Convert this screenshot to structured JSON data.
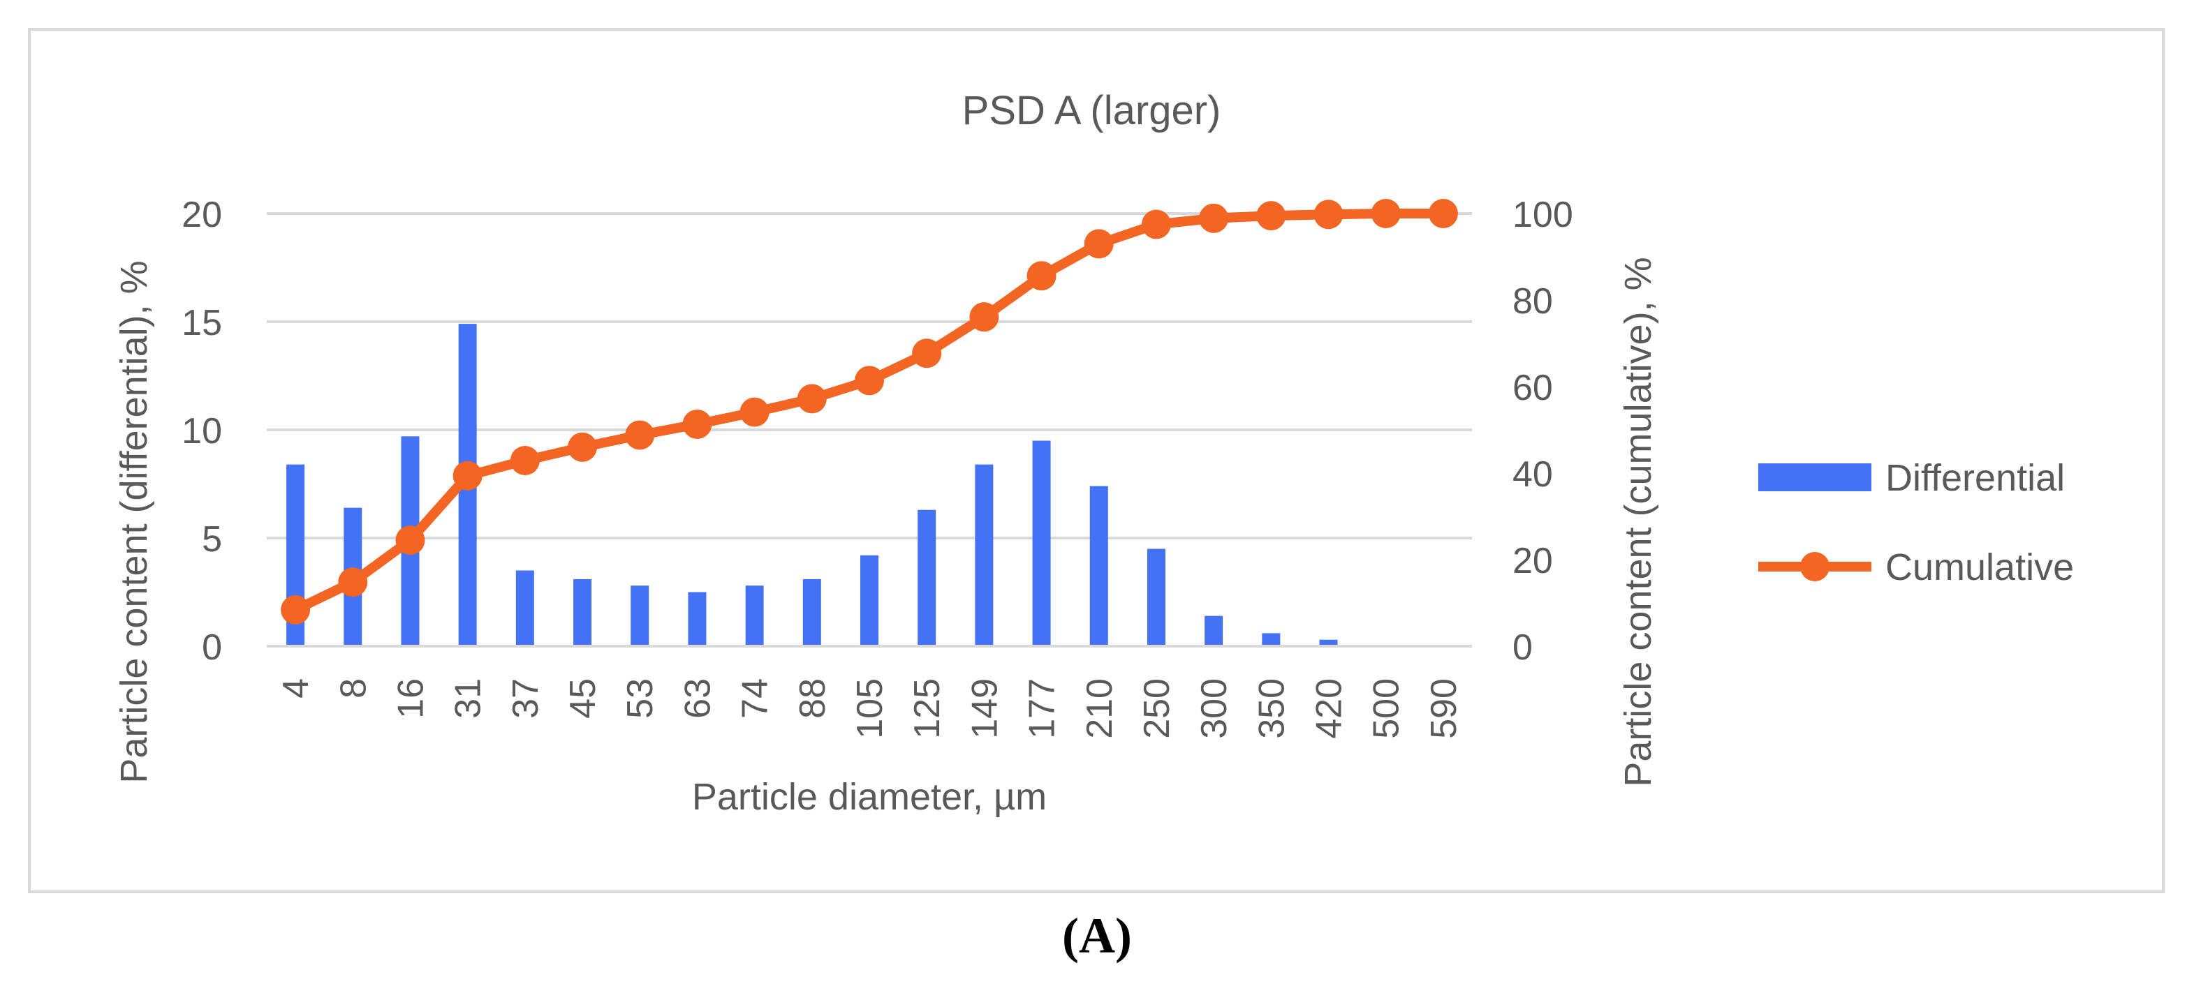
{
  "caption": "(A)",
  "chart_data": {
    "type": "bar+line",
    "title": "PSD A (larger)",
    "xlabel": "Particle diameter, µm",
    "ylabel_left": "Particle content (differential), %",
    "ylabel_right": "Particle content (cumulative), %",
    "ylim_left": [
      0,
      20
    ],
    "ylim_right": [
      0,
      100
    ],
    "yticks_left": [
      "0",
      "5",
      "10",
      "15",
      "20"
    ],
    "yticks_right": [
      "0",
      "20",
      "40",
      "60",
      "80",
      "100"
    ],
    "grid": true,
    "legend_position": "right",
    "categories": [
      "4",
      "8",
      "16",
      "31",
      "37",
      "45",
      "53",
      "63",
      "74",
      "88",
      "105",
      "125",
      "149",
      "177",
      "210",
      "250",
      "300",
      "350",
      "420",
      "500",
      "590"
    ],
    "series": [
      {
        "name": "Differential",
        "type": "bar",
        "axis": "left",
        "color": "#4472f4",
        "values": [
          8.4,
          6.4,
          9.7,
          14.9,
          3.5,
          3.1,
          2.8,
          2.5,
          2.8,
          3.1,
          4.2,
          6.3,
          8.4,
          9.5,
          7.4,
          4.5,
          1.4,
          0.6,
          0.3,
          0,
          0
        ]
      },
      {
        "name": "Cumulative",
        "type": "line",
        "axis": "right",
        "color": "#f26522",
        "values": [
          8.4,
          14.8,
          24.5,
          39.4,
          42.9,
          46.0,
          48.8,
          51.3,
          54.1,
          57.2,
          61.4,
          67.7,
          76.1,
          85.6,
          93.0,
          97.5,
          98.9,
          99.5,
          99.8,
          100,
          100
        ]
      }
    ]
  }
}
